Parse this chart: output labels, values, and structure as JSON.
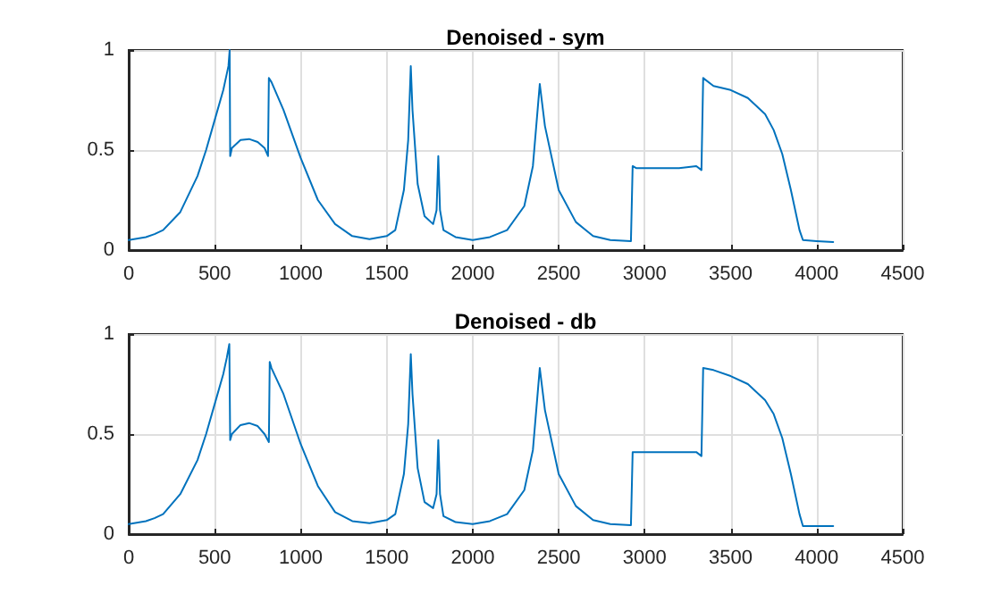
{
  "chart_data": [
    {
      "type": "line",
      "title": "Denoised - sym",
      "xlim": [
        0,
        4500
      ],
      "xticks": [
        0,
        500,
        1000,
        1500,
        2000,
        2500,
        3000,
        3500,
        4000,
        4500
      ],
      "ylim": [
        0,
        1
      ],
      "yticks": [
        0,
        0.5,
        1
      ],
      "grid": true,
      "series": [
        {
          "color": "#0072bd",
          "x": [
            0,
            100,
            150,
            200,
            300,
            400,
            450,
            500,
            550,
            570,
            580,
            587,
            590,
            600,
            650,
            700,
            750,
            790,
            810,
            815,
            830,
            900,
            1000,
            1100,
            1200,
            1300,
            1400,
            1500,
            1550,
            1600,
            1625,
            1640,
            1650,
            1680,
            1720,
            1770,
            1790,
            1800,
            1810,
            1830,
            1900,
            2000,
            2100,
            2200,
            2300,
            2350,
            2390,
            2420,
            2500,
            2600,
            2700,
            2800,
            2920,
            2930,
            2950,
            3000,
            3100,
            3200,
            3300,
            3330,
            3340,
            3400,
            3500,
            3600,
            3700,
            3750,
            3800,
            3850,
            3900,
            3920,
            4000,
            4096
          ],
          "values": [
            0.05,
            0.065,
            0.08,
            0.1,
            0.19,
            0.37,
            0.5,
            0.65,
            0.8,
            0.88,
            0.92,
            1.0,
            0.47,
            0.51,
            0.55,
            0.555,
            0.54,
            0.51,
            0.47,
            0.86,
            0.84,
            0.7,
            0.46,
            0.25,
            0.13,
            0.07,
            0.055,
            0.07,
            0.1,
            0.3,
            0.55,
            0.92,
            0.7,
            0.33,
            0.17,
            0.13,
            0.2,
            0.47,
            0.2,
            0.1,
            0.065,
            0.05,
            0.065,
            0.1,
            0.22,
            0.42,
            0.83,
            0.62,
            0.3,
            0.14,
            0.07,
            0.05,
            0.045,
            0.42,
            0.41,
            0.41,
            0.41,
            0.41,
            0.42,
            0.4,
            0.86,
            0.82,
            0.8,
            0.76,
            0.68,
            0.6,
            0.48,
            0.3,
            0.1,
            0.05,
            0.045,
            0.04
          ]
        }
      ]
    },
    {
      "type": "line",
      "title": "Denoised - db",
      "xlim": [
        0,
        4500
      ],
      "xticks": [
        0,
        500,
        1000,
        1500,
        2000,
        2500,
        3000,
        3500,
        4000,
        4500
      ],
      "ylim": [
        0,
        1
      ],
      "yticks": [
        0,
        0.5,
        1
      ],
      "grid": true,
      "series": [
        {
          "color": "#0072bd",
          "x": [
            0,
            100,
            150,
            200,
            300,
            400,
            450,
            500,
            550,
            570,
            585,
            590,
            600,
            650,
            700,
            750,
            790,
            815,
            820,
            830,
            900,
            1000,
            1100,
            1200,
            1300,
            1400,
            1500,
            1550,
            1600,
            1625,
            1640,
            1650,
            1680,
            1720,
            1770,
            1790,
            1800,
            1810,
            1830,
            1900,
            2000,
            2100,
            2200,
            2300,
            2350,
            2390,
            2420,
            2500,
            2600,
            2700,
            2800,
            2920,
            2930,
            2950,
            3000,
            3100,
            3200,
            3300,
            3330,
            3340,
            3400,
            3500,
            3600,
            3700,
            3750,
            3800,
            3850,
            3900,
            3920,
            4000,
            4096
          ],
          "values": [
            0.05,
            0.065,
            0.08,
            0.1,
            0.2,
            0.37,
            0.5,
            0.65,
            0.8,
            0.88,
            0.95,
            0.47,
            0.5,
            0.545,
            0.555,
            0.54,
            0.5,
            0.46,
            0.86,
            0.83,
            0.7,
            0.45,
            0.24,
            0.11,
            0.065,
            0.055,
            0.07,
            0.1,
            0.3,
            0.55,
            0.9,
            0.7,
            0.33,
            0.16,
            0.13,
            0.2,
            0.47,
            0.2,
            0.09,
            0.06,
            0.05,
            0.065,
            0.1,
            0.22,
            0.42,
            0.83,
            0.62,
            0.3,
            0.14,
            0.07,
            0.05,
            0.045,
            0.41,
            0.41,
            0.41,
            0.41,
            0.41,
            0.41,
            0.39,
            0.83,
            0.82,
            0.79,
            0.75,
            0.67,
            0.6,
            0.48,
            0.3,
            0.1,
            0.04,
            0.04,
            0.04
          ]
        }
      ]
    }
  ]
}
